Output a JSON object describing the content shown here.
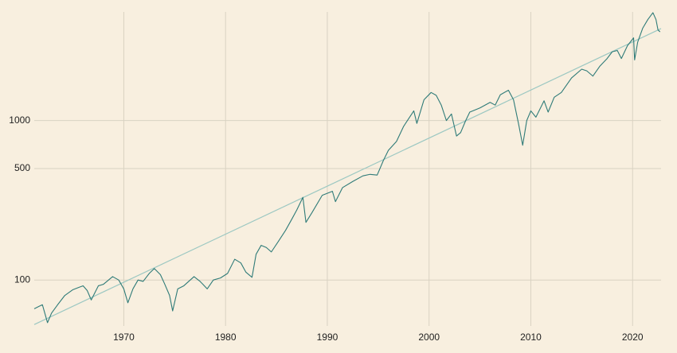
{
  "chart_data": {
    "type": "line",
    "log_y": true,
    "grid": true,
    "xlim": [
      1961.2,
      2022.8
    ],
    "xticks": [
      1970,
      1980,
      1990,
      2000,
      2010,
      2020
    ],
    "ylim": [
      51.5,
      4800
    ],
    "yticks": [
      100,
      500,
      1000
    ],
    "series": [
      {
        "color": "#2f7b78",
        "x": [
          1961.2,
          1961.6,
          1962.0,
          1962.3,
          1962.5,
          1962.9,
          1963.5,
          1964.2,
          1965.0,
          1965.6,
          1966.0,
          1966.4,
          1966.8,
          1967.5,
          1968.0,
          1968.9,
          1969.5,
          1970.0,
          1970.4,
          1970.9,
          1971.4,
          1971.9,
          1972.5,
          1973.0,
          1973.6,
          1974.0,
          1974.5,
          1974.8,
          1975.3,
          1975.9,
          1976.9,
          1977.5,
          1978.2,
          1978.8,
          1979.5,
          1980.2,
          1980.9,
          1981.5,
          1982.0,
          1982.6,
          1983.0,
          1983.5,
          1984.0,
          1984.5,
          1985.2,
          1985.9,
          1986.5,
          1987.0,
          1987.6,
          1987.9,
          1988.5,
          1989.5,
          1990.5,
          1990.8,
          1991.5,
          1992.5,
          1993.5,
          1994.2,
          1994.9,
          1995.5,
          1996.0,
          1996.8,
          1997.5,
          1998.5,
          1998.8,
          1999.5,
          2000.2,
          2000.7,
          2001.2,
          2001.7,
          2002.2,
          2002.7,
          2003.1,
          2003.6,
          2004.0,
          2005.0,
          2006.0,
          2006.5,
          2007.0,
          2007.8,
          2008.3,
          2008.8,
          2009.2,
          2009.6,
          2010.0,
          2010.5,
          2011.3,
          2011.7,
          2012.3,
          2013.0,
          2014.0,
          2015.0,
          2015.5,
          2016.1,
          2016.8,
          2017.5,
          2018.0,
          2018.5,
          2018.9,
          2019.5,
          2020.1,
          2020.2,
          2020.5,
          2021.0,
          2021.5,
          2022.0,
          2022.3,
          2022.5,
          2022.7
        ],
        "values": [
          66,
          68,
          70,
          60,
          54,
          62,
          70,
          80,
          87,
          90,
          92,
          86,
          75,
          92,
          94,
          105,
          100,
          88,
          72,
          88,
          100,
          98,
          110,
          118,
          108,
          95,
          80,
          64,
          88,
          92,
          105,
          98,
          88,
          100,
          103,
          110,
          135,
          128,
          112,
          104,
          145,
          165,
          160,
          150,
          175,
          205,
          240,
          275,
          330,
          230,
          265,
          340,
          360,
          310,
          380,
          415,
          450,
          460,
          455,
          560,
          650,
          740,
          920,
          1150,
          960,
          1350,
          1500,
          1440,
          1250,
          1000,
          1100,
          800,
          840,
          1000,
          1130,
          1200,
          1300,
          1250,
          1450,
          1550,
          1350,
          950,
          700,
          1000,
          1150,
          1050,
          1330,
          1130,
          1400,
          1500,
          1850,
          2100,
          2050,
          1900,
          2200,
          2450,
          2700,
          2750,
          2450,
          2950,
          3300,
          2400,
          3100,
          3800,
          4300,
          4750,
          4300,
          3700,
          3600
        ]
      },
      {
        "color": "#9cc8c2",
        "x": [
          1961.2,
          2022.8
        ],
        "values": [
          52.6,
          3776
        ]
      }
    ]
  }
}
